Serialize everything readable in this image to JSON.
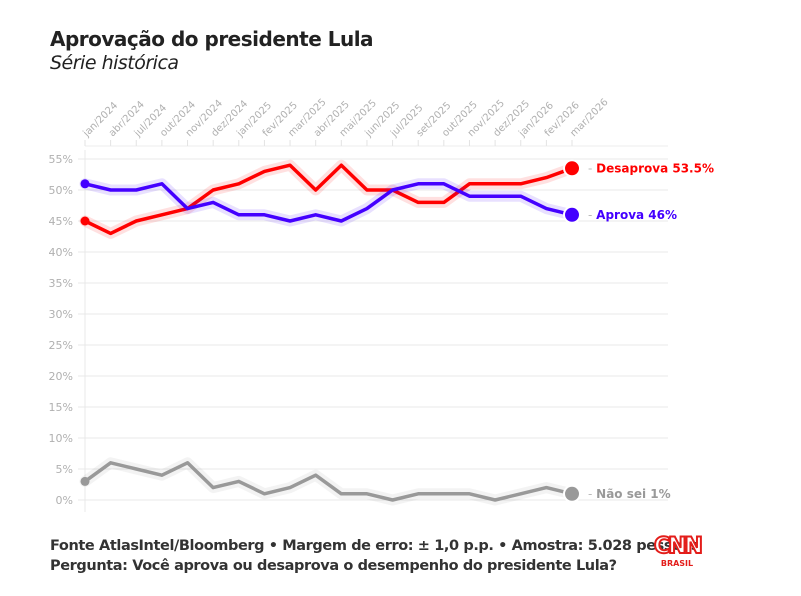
{
  "header": {
    "title": "Aprovação do presidente Lula",
    "subtitle": "Série histórica"
  },
  "footer": {
    "source_line": "Fonte AtlasIntel/Bloomberg • Margem de erro: ± 1,0 p.p. • Amostra: 5.028 pessoas",
    "question_line": "Pergunta: Você aprova ou desaprova o desempenho do presidente Lula?"
  },
  "logo": {
    "brand": "CNN",
    "sub": "BRASIL"
  },
  "chart_data": {
    "type": "line",
    "title": "Aprovação do presidente Lula",
    "subtitle": "Série histórica",
    "xlabel": "",
    "ylabel": "",
    "x": [
      "jan/2024",
      "abr/2024",
      "jul/2024",
      "out/2024",
      "nov/2024",
      "dez/2024",
      "jan/2025",
      "fev/2025",
      "mar/2025",
      "abr/2025",
      "mai/2025",
      "jun/2025",
      "jul/2025",
      "set/2025",
      "out/2025",
      "nov/2025",
      "dez/2025",
      "jan/2026",
      "fev/2026",
      "mar/2026"
    ],
    "ylim": [
      0,
      55
    ],
    "yticks": [
      0,
      5,
      10,
      15,
      20,
      25,
      30,
      35,
      40,
      45,
      50,
      55
    ],
    "ytick_labels": [
      "0%",
      "5%",
      "10%",
      "15%",
      "20%",
      "25%",
      "30%",
      "35%",
      "40%",
      "45%",
      "50%",
      "55%"
    ],
    "grid": true,
    "legend": "end-labels-right",
    "series": [
      {
        "name": "Desaprova",
        "color": "#ff0000",
        "end_label": "Desaprova 53.5%",
        "values": [
          45,
          43,
          45,
          46,
          47,
          50,
          51,
          53,
          54,
          50,
          54,
          50,
          50,
          48,
          48,
          51,
          51,
          51,
          52,
          53.5
        ]
      },
      {
        "name": "Aprova",
        "color": "#4400ff",
        "end_label": "Aprova 46%",
        "values": [
          51,
          50,
          50,
          51,
          47,
          48,
          46,
          46,
          45,
          46,
          45,
          47,
          50,
          51,
          51,
          49,
          49,
          49,
          47,
          46
        ]
      },
      {
        "name": "Não sei",
        "color": "#999999",
        "end_label": "Não sei 1%",
        "values": [
          3,
          6,
          5,
          4,
          6,
          2,
          3,
          1,
          2,
          4,
          1,
          1,
          0,
          1,
          1,
          1,
          0,
          1,
          2,
          1
        ]
      }
    ]
  }
}
